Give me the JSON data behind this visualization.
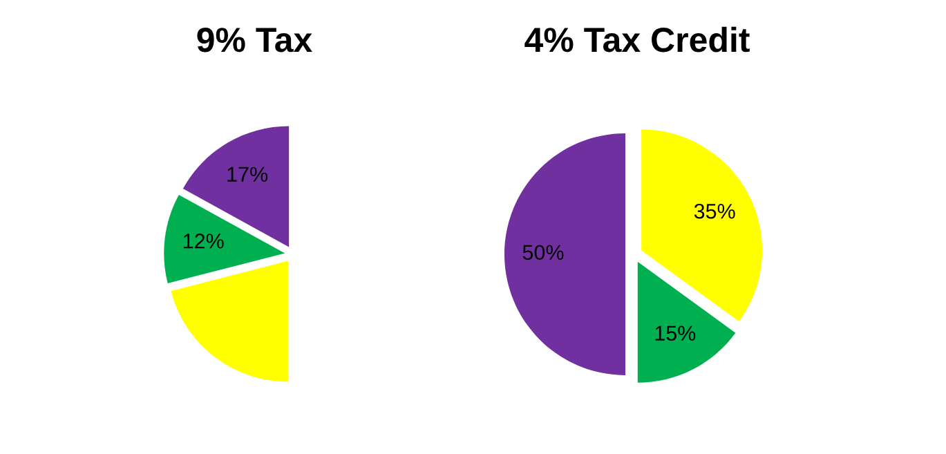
{
  "chart_data": [
    {
      "type": "pie",
      "title": "9% Tax",
      "categories": [
        null,
        null,
        null
      ],
      "values": [
        21,
        12,
        17
      ],
      "colors": [
        "#ffff00",
        "#00b050",
        "#7030a0"
      ],
      "value_labels": [
        null,
        "12%",
        "17%"
      ]
    },
    {
      "type": "pie",
      "title": "4% Tax Credit",
      "categories": [
        null,
        null,
        null
      ],
      "values": [
        35,
        15,
        50
      ],
      "colors": [
        "#ffff00",
        "#00b050",
        "#7030a0"
      ],
      "value_labels": [
        "35%",
        "15%",
        "50%"
      ]
    }
  ]
}
